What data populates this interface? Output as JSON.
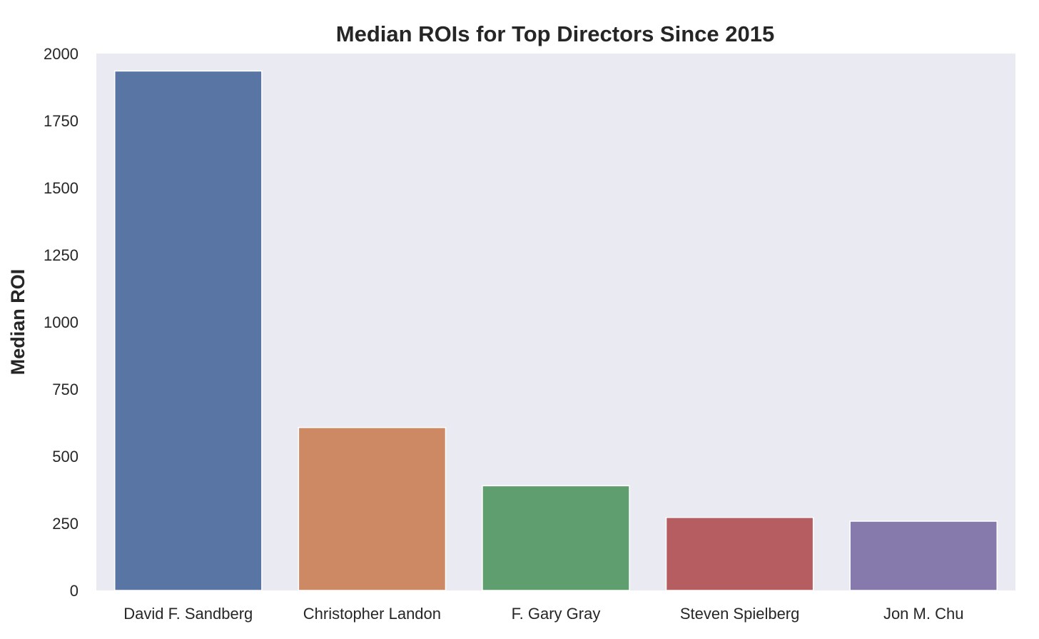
{
  "chart_data": {
    "type": "bar",
    "title": "Median ROIs for Top Directors Since 2015",
    "xlabel": "",
    "ylabel": "Median ROI",
    "categories": [
      "David F. Sandberg",
      "Christopher Landon",
      "F. Gary Gray",
      "Steven Spielberg",
      "Jon M. Chu"
    ],
    "values": [
      1935,
      607,
      390,
      272,
      258
    ],
    "colors": [
      "#5975a4",
      "#cc8963",
      "#5f9e6e",
      "#b55d60",
      "#857aab"
    ],
    "ylim": [
      0,
      2000
    ],
    "yticks": [
      0,
      250,
      500,
      750,
      1000,
      1250,
      1500,
      1750,
      2000
    ],
    "ytick_labels": [
      "0",
      "250",
      "500",
      "750",
      "1000",
      "1250",
      "1500",
      "1750",
      "2000"
    ],
    "grid": false,
    "background": "#eaeaf2"
  }
}
